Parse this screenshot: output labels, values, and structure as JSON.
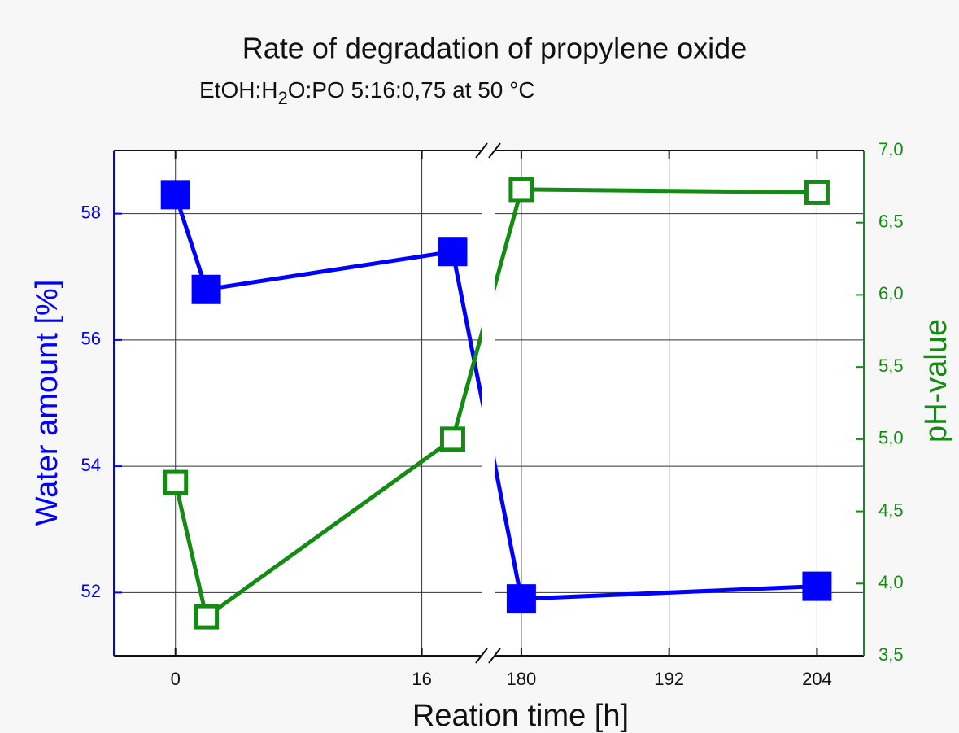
{
  "chart_data": {
    "type": "line",
    "title": "Rate of degradation of propylene oxide",
    "subtitle": [
      "EtOH:H",
      "2",
      "O:PO 5:16:0,75 at 50 °C"
    ],
    "x_label": "Reation time [h]",
    "y_label": "Water amount [%]",
    "y2_label": "pH-value",
    "x": [
      0,
      2,
      18,
      180,
      204
    ],
    "x_segments": [
      {
        "xlim": [
          -4,
          20.3
        ],
        "xticks": [
          0,
          16
        ]
      },
      {
        "xlim": [
          177.3,
          207.8
        ],
        "xticks": [
          180,
          192,
          204
        ]
      }
    ],
    "ylim": [
      51,
      59
    ],
    "yticks": [
      52,
      54,
      56,
      58
    ],
    "y2lim": [
      3.5,
      7.0
    ],
    "y2ticks": [
      {
        "value": 3.5,
        "label": "3,5"
      },
      {
        "value": 4.0,
        "label": "4,0"
      },
      {
        "value": 4.5,
        "label": "4,5"
      },
      {
        "value": 5.0,
        "label": "5,0"
      },
      {
        "value": 5.5,
        "label": "5,5"
      },
      {
        "value": 6.0,
        "label": "6,0"
      },
      {
        "value": 6.5,
        "label": "6,5"
      },
      {
        "value": 7.0,
        "label": "7,0"
      }
    ],
    "grid": true,
    "y_color": "#0000ff",
    "y2_color": "#148c14",
    "series": [
      {
        "color": "#0000ff",
        "marker": "filled",
        "axis": "y",
        "values": [
          58.3,
          56.8,
          57.4,
          51.9,
          52.1
        ]
      },
      {
        "color": "#148c14",
        "marker": "hollow",
        "axis": "y2",
        "values": [
          4.7,
          3.77,
          5.0,
          6.73,
          6.71
        ]
      }
    ]
  }
}
